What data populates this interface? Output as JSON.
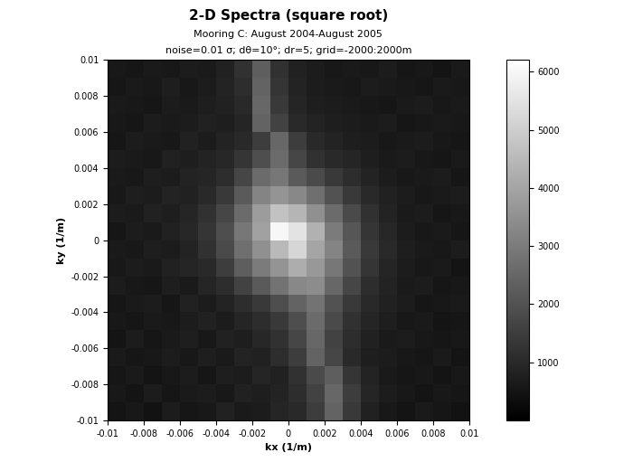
{
  "chart_data": {
    "type": "heatmap",
    "title": "2-D Spectra (square root)",
    "subtitle": [
      "Mooring C: August 2004-August 2005",
      "noise=0.01 σ; dθ=10°; dr=5; grid=-2000:2000m"
    ],
    "x_label": "kx (1/m)",
    "y_label": "ky (1/m)",
    "x": [
      -0.0095,
      -0.0085,
      -0.0075,
      -0.0065,
      -0.0055,
      -0.0045,
      -0.0035,
      -0.0025,
      -0.0015,
      -0.0005,
      0.0005,
      0.0015,
      0.0025,
      0.0035,
      0.0045,
      0.0055,
      0.0065,
      0.0075,
      0.0085,
      0.0095
    ],
    "y": [
      -0.0095,
      -0.0085,
      -0.0075,
      -0.0065,
      -0.0055,
      -0.0045,
      -0.0035,
      -0.0025,
      -0.0015,
      -0.0005,
      0.0005,
      0.0015,
      0.0025,
      0.0035,
      0.0045,
      0.0055,
      0.0065,
      0.0075,
      0.0085,
      0.0095
    ],
    "cells": [
      [
        500,
        600,
        450,
        700,
        550,
        600,
        800,
        650,
        700,
        900,
        1000,
        1500,
        2400,
        1400,
        800,
        600,
        500,
        650,
        550,
        450
      ],
      [
        600,
        500,
        700,
        550,
        650,
        700,
        600,
        800,
        750,
        850,
        1100,
        1600,
        2500,
        1500,
        900,
        700,
        600,
        500,
        600,
        550
      ],
      [
        550,
        650,
        500,
        600,
        700,
        550,
        750,
        700,
        900,
        800,
        1200,
        1800,
        2300,
        1300,
        850,
        650,
        550,
        600,
        500,
        600
      ],
      [
        650,
        550,
        600,
        700,
        600,
        750,
        650,
        850,
        800,
        1100,
        1500,
        2400,
        1700,
        1000,
        750,
        700,
        600,
        550,
        650,
        500
      ],
      [
        500,
        700,
        550,
        650,
        750,
        600,
        800,
        750,
        950,
        1200,
        1700,
        2500,
        1600,
        1100,
        800,
        650,
        700,
        600,
        550,
        600
      ],
      [
        600,
        550,
        650,
        600,
        700,
        800,
        700,
        900,
        1100,
        1400,
        1900,
        2600,
        1800,
        1200,
        900,
        750,
        600,
        650,
        500,
        550
      ],
      [
        550,
        650,
        700,
        550,
        800,
        700,
        850,
        1100,
        1400,
        1900,
        2400,
        2800,
        2000,
        1400,
        1000,
        800,
        700,
        550,
        600,
        650
      ],
      [
        700,
        600,
        550,
        750,
        650,
        900,
        1100,
        1600,
        2200,
        2800,
        3300,
        3400,
        2500,
        1700,
        1100,
        850,
        650,
        700,
        550,
        600
      ],
      [
        600,
        700,
        650,
        800,
        900,
        1000,
        1500,
        2300,
        3000,
        3600,
        4200,
        3700,
        2900,
        2000,
        1300,
        900,
        700,
        600,
        650,
        500
      ],
      [
        650,
        600,
        750,
        700,
        850,
        1200,
        1800,
        2700,
        3500,
        4500,
        5200,
        4000,
        3200,
        2200,
        1400,
        1000,
        750,
        650,
        600,
        700
      ],
      [
        550,
        700,
        650,
        800,
        950,
        1300,
        1900,
        2900,
        3900,
        6000,
        5500,
        4300,
        3000,
        2100,
        1300,
        950,
        700,
        600,
        650,
        550
      ],
      [
        700,
        650,
        800,
        750,
        900,
        1200,
        1700,
        2600,
        3800,
        4700,
        4400,
        3500,
        2600,
        1800,
        1200,
        850,
        650,
        700,
        550,
        600
      ],
      [
        600,
        750,
        700,
        850,
        800,
        1000,
        1400,
        2200,
        3200,
        3600,
        3300,
        2700,
        2000,
        1400,
        1000,
        800,
        700,
        600,
        650,
        700
      ],
      [
        650,
        600,
        750,
        700,
        850,
        900,
        1100,
        1700,
        2600,
        2900,
        2200,
        1800,
        1400,
        1100,
        850,
        700,
        600,
        650,
        700,
        550
      ],
      [
        700,
        650,
        600,
        800,
        750,
        850,
        950,
        1300,
        1900,
        2600,
        1700,
        1200,
        1000,
        900,
        750,
        650,
        700,
        600,
        550,
        650
      ],
      [
        550,
        700,
        650,
        600,
        800,
        700,
        850,
        1000,
        1500,
        2500,
        1500,
        1000,
        850,
        750,
        700,
        600,
        650,
        700,
        600,
        550
      ],
      [
        600,
        550,
        700,
        650,
        700,
        800,
        750,
        900,
        2400,
        1600,
        1000,
        850,
        750,
        700,
        650,
        700,
        550,
        600,
        650,
        600
      ],
      [
        650,
        600,
        550,
        700,
        650,
        750,
        800,
        1000,
        2500,
        1400,
        900,
        750,
        700,
        650,
        600,
        550,
        650,
        700,
        600,
        650
      ],
      [
        550,
        650,
        600,
        750,
        600,
        700,
        850,
        1100,
        2400,
        1300,
        850,
        700,
        650,
        600,
        700,
        650,
        600,
        550,
        650,
        600
      ],
      [
        600,
        550,
        650,
        600,
        700,
        650,
        800,
        1200,
        2300,
        1200,
        800,
        700,
        600,
        650,
        600,
        700,
        550,
        600,
        500,
        650
      ]
    ],
    "xlim": [
      -0.01,
      0.01
    ],
    "xticks": [
      -0.01,
      -0.008,
      -0.006,
      -0.004,
      -0.002,
      0,
      0.002,
      0.004,
      0.006,
      0.008,
      0.01
    ],
    "ylim": [
      -0.01,
      0.01
    ],
    "yticks": [
      -0.01,
      -0.008,
      -0.006,
      -0.004,
      -0.002,
      0,
      0.002,
      0.004,
      0.006,
      0.008,
      0.01
    ],
    "colorbar_range": [
      0,
      6200
    ],
    "colorbar_ticks": [
      1000,
      2000,
      3000,
      4000,
      5000,
      6000
    ],
    "color": "gray"
  }
}
